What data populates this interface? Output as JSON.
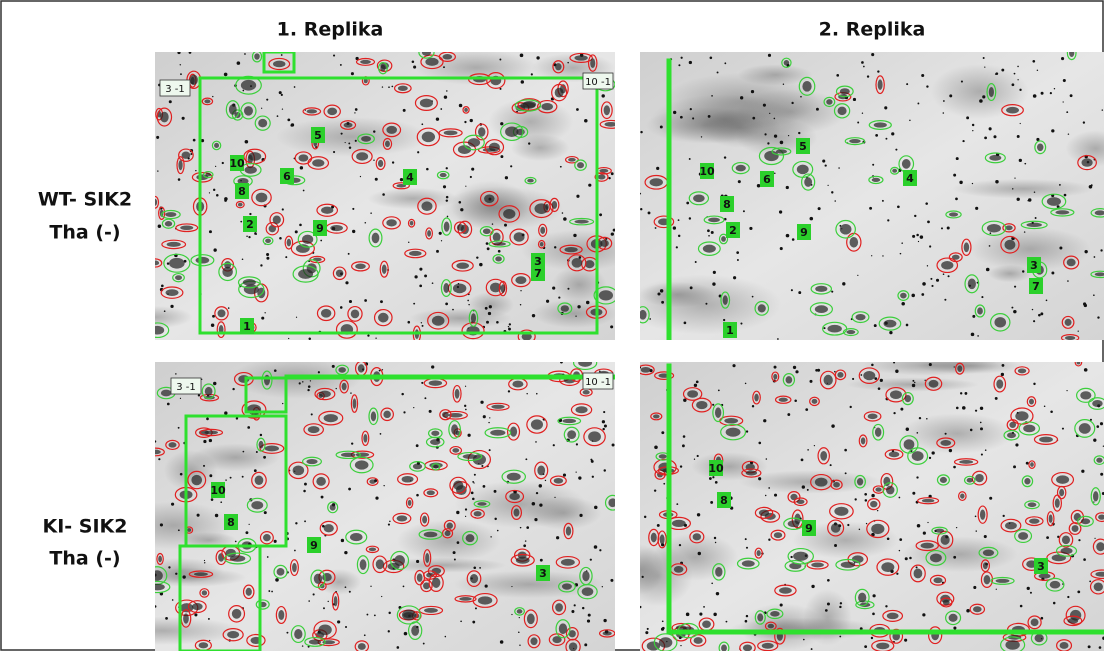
{
  "columns": [
    "1. Replika",
    "2. Replika"
  ],
  "rows": [
    {
      "line1": "WT- SIK2",
      "line2": "Tha (-)"
    },
    {
      "line1": "KI- SIK2",
      "line2": "Tha (-)"
    }
  ],
  "panels": [
    {
      "tags": [
        "3 -1",
        "10 -1"
      ],
      "spots": [
        "10",
        "8",
        "2",
        "6",
        "5",
        "4",
        "9",
        "3",
        "7",
        "1"
      ]
    },
    {
      "tags": [],
      "spots": [
        "5",
        "10",
        "6",
        "8",
        "4",
        "2",
        "9",
        "3",
        "7",
        "1"
      ]
    },
    {
      "tags": [
        "3 -1",
        "10 -1"
      ],
      "spots": [
        "10",
        "8",
        "9",
        "3"
      ]
    },
    {
      "tags": [],
      "spots": [
        "10",
        "8",
        "9",
        "3"
      ]
    }
  ]
}
